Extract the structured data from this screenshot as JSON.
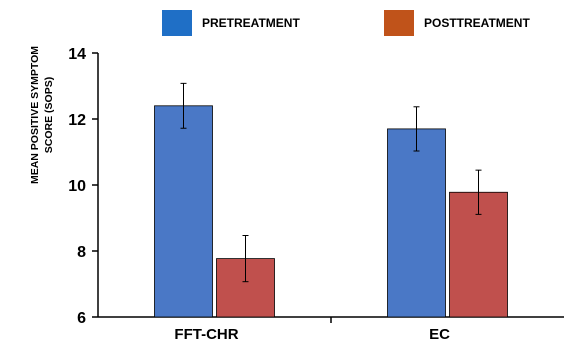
{
  "chart_data": {
    "type": "bar",
    "categories": [
      "FFT-CHR",
      "EC"
    ],
    "series": [
      {
        "name": "PRETREATMENT",
        "values": [
          12.4,
          11.7
        ],
        "error": [
          0.68,
          0.67
        ],
        "color": "#4a78c6"
      },
      {
        "name": "POSTTREATMENT",
        "values": [
          7.77,
          9.78
        ],
        "error": [
          0.7,
          0.67
        ],
        "color": "#c0504d"
      }
    ],
    "ylabel_line1": "MEAN POSITIVE SYMPTOM",
    "ylabel_line2": "SCORE (SOPS)",
    "ylim": [
      6,
      14
    ],
    "yticks": [
      "6",
      "8",
      "10",
      "12",
      "14"
    ],
    "legend_position": "top",
    "legend_colors": {
      "PRETREATMENT": "#1f6fc6",
      "POSTTREATMENT": "#c0531a"
    }
  }
}
